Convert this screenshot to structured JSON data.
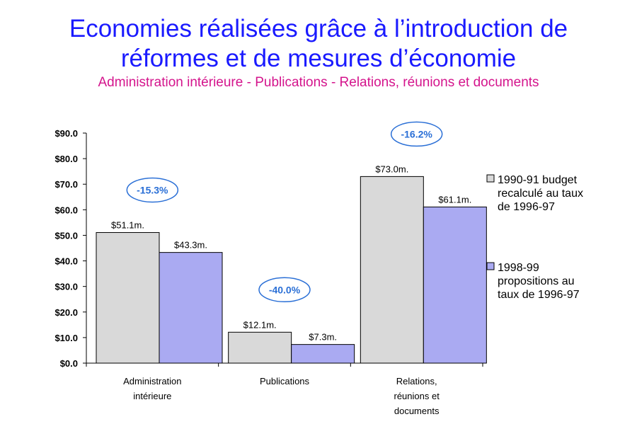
{
  "chart_data": {
    "type": "bar",
    "title_line1": "Economies réalisées grâce à l’introduction de",
    "title_line2": "réformes et de mesures d’économie",
    "subtitle": "Administration intérieure - Publications - Relations, réunions et documents",
    "categories": [
      [
        "Administration",
        "intérieure"
      ],
      [
        "Publications"
      ],
      [
        "Relations,",
        "réunions et",
        "documents"
      ]
    ],
    "series": [
      {
        "name_lines": [
          "1990-91 budget",
          "recalculé au taux",
          "de 1996-97"
        ],
        "color": "#d9d9d9",
        "values": [
          51.1,
          12.1,
          73.0
        ],
        "labels": [
          "$51.1m.",
          "$12.1m.",
          "$73.0m."
        ]
      },
      {
        "name_lines": [
          "1998-99",
          "propositions au",
          "taux de 1996-97"
        ],
        "color": "#aaaaf2",
        "values": [
          43.3,
          7.3,
          61.1
        ],
        "labels": [
          "$43.3m.",
          "$7.3m.",
          "$61.1m."
        ]
      }
    ],
    "changes": [
      "-15.3%",
      "-40.0%",
      "-16.2%"
    ],
    "ylim": [
      0,
      90
    ],
    "yticks": [
      "$0.0",
      "$10.0",
      "$20.0",
      "$30.0",
      "$40.0",
      "$50.0",
      "$60.0",
      "$70.0",
      "$80.0",
      "$90.0"
    ],
    "legend_position": "right",
    "grid": false
  }
}
